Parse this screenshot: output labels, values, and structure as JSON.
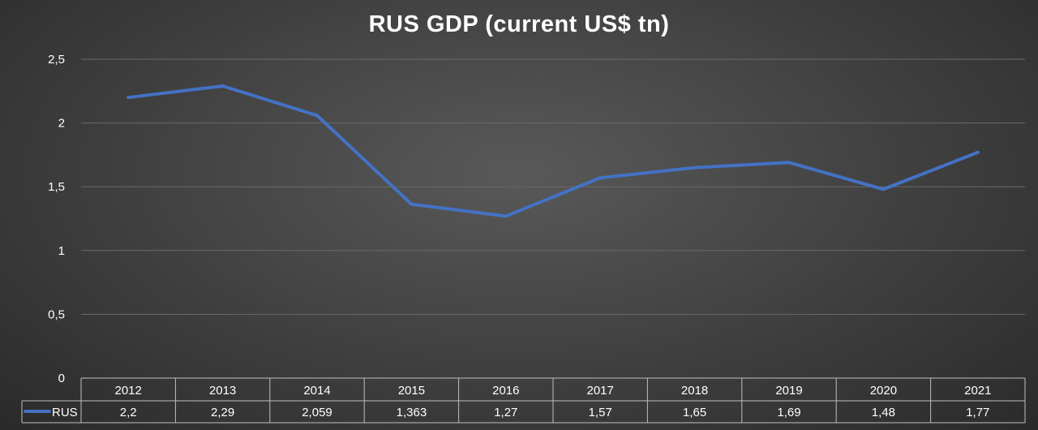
{
  "chart_data": {
    "type": "line",
    "title": "RUS GDP (current US$ tn)",
    "categories": [
      "2012",
      "2013",
      "2014",
      "2015",
      "2016",
      "2017",
      "2018",
      "2019",
      "2020",
      "2021"
    ],
    "series": [
      {
        "name": "RUS",
        "values": [
          2.2,
          2.29,
          2.059,
          1.363,
          1.27,
          1.57,
          1.65,
          1.69,
          1.48,
          1.77
        ],
        "labels": [
          "2,2",
          "2,29",
          "2,059",
          "1,363",
          "1,27",
          "1,57",
          "1,65",
          "1,69",
          "1,48",
          "1,77"
        ],
        "color": "#4472C4"
      }
    ],
    "y_ticks": [
      "0",
      "0,5",
      "1",
      "1,5",
      "2",
      "2,5"
    ],
    "ylim": [
      0,
      2.5
    ],
    "grid": true,
    "legend": "data-table"
  }
}
